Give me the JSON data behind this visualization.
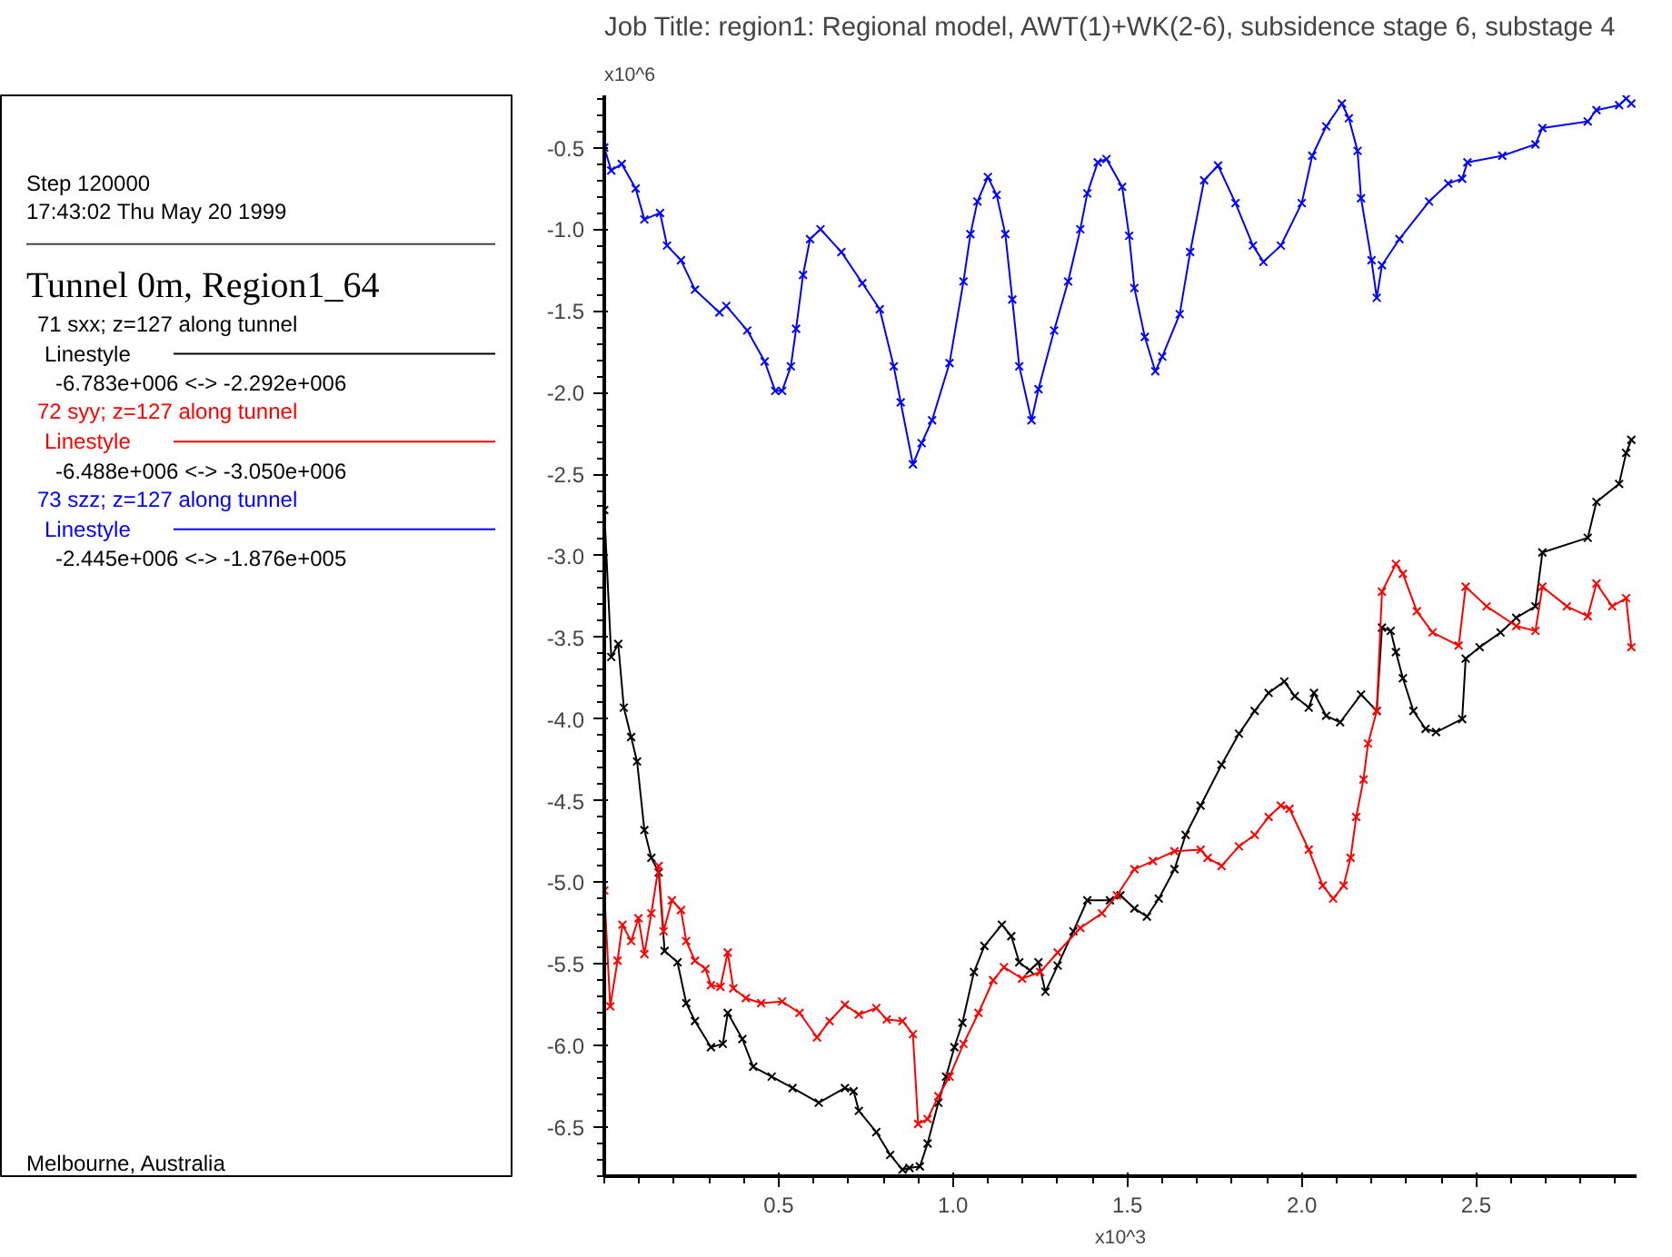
{
  "chart_data": {
    "type": "line",
    "title": "Job Title: region1: Regional model, AWT(1)+WK(2-6), subsidence stage 6, substage 4",
    "subtitle": "Tunnel 0m, Region1_64",
    "xlabel": "x10^3",
    "ylabel": "x10^6",
    "annotations": [
      "Step 120000",
      "17:43:02 Thu May 20 1999",
      "Linestyle",
      "-6.783e+006 <-> -2.292e+006",
      "Linestyle",
      "-6.488e+006 <-> -3.050e+006",
      "Linestyle",
      "-2.445e+006 <-> -1.876e+005",
      "Melbourne,  Australia"
    ],
    "xlim": [
      0,
      2.96
    ],
    "ylim": [
      -6.8,
      -0.18
    ],
    "xticks": [
      0.5,
      {
        "value": 1,
        "label": "1.0"
      },
      1.5,
      {
        "value": 2,
        "label": "2.0"
      },
      2.5
    ],
    "yticks": [
      -6.5,
      {
        "value": -6,
        "label": "-6.0"
      },
      -5.5,
      {
        "value": -5,
        "label": "-5.0"
      },
      -4.5,
      {
        "value": -4,
        "label": "-4.0"
      },
      -3.5,
      {
        "value": -3,
        "label": "-3.0"
      },
      -2.5,
      {
        "value": -2,
        "label": "-2.0"
      },
      -1.5,
      {
        "value": -1,
        "label": "-1.0"
      },
      -0.5
    ],
    "grid": false,
    "legend": "left",
    "marker": "cross",
    "line_style": "solid",
    "series": [
      {
        "name": "71 sxx; z=127 along tunnel",
        "color": "#000000",
        "x": [
          0,
          0.02,
          0.04,
          0.056,
          0.077,
          0.094,
          0.115,
          0.135,
          0.156,
          0.173,
          0.21,
          0.235,
          0.26,
          0.306,
          0.34,
          0.354,
          0.396,
          0.427,
          0.48,
          0.54,
          0.615,
          0.69,
          0.715,
          0.73,
          0.78,
          0.82,
          0.855,
          0.875,
          0.905,
          0.927,
          0.958,
          0.98,
          1.004,
          1.027,
          1.06,
          1.09,
          1.14,
          1.167,
          1.19,
          1.22,
          1.245,
          1.265,
          1.3,
          1.345,
          1.385,
          1.45,
          1.48,
          1.52,
          1.556,
          1.59,
          1.635,
          1.667,
          1.71,
          1.77,
          1.82,
          1.865,
          1.905,
          1.95,
          1.98,
          2.02,
          2.035,
          2.07,
          2.11,
          2.17,
          2.215,
          2.23,
          2.255,
          2.27,
          2.29,
          2.32,
          2.355,
          2.385,
          2.46,
          2.47,
          2.51,
          2.57,
          2.615,
          2.67,
          2.69,
          2.82,
          2.845,
          2.91,
          2.93,
          2.945
        ],
        "values": [
          -2.72,
          -3.62,
          -3.54,
          -3.93,
          -4.11,
          -4.26,
          -4.68,
          -4.85,
          -4.94,
          -5.42,
          -5.49,
          -5.74,
          -5.85,
          -6.01,
          -5.99,
          -5.8,
          -5.96,
          -6.13,
          -6.19,
          -6.26,
          -6.35,
          -6.26,
          -6.28,
          -6.4,
          -6.53,
          -6.67,
          -6.76,
          -6.75,
          -6.74,
          -6.6,
          -6.35,
          -6.19,
          -6.01,
          -5.86,
          -5.55,
          -5.39,
          -5.26,
          -5.33,
          -5.49,
          -5.54,
          -5.49,
          -5.67,
          -5.51,
          -5.3,
          -5.11,
          -5.11,
          -5.08,
          -5.16,
          -5.21,
          -5.1,
          -4.92,
          -4.71,
          -4.53,
          -4.28,
          -4.09,
          -3.95,
          -3.84,
          -3.77,
          -3.86,
          -3.93,
          -3.84,
          -3.98,
          -4.02,
          -3.85,
          -3.95,
          -3.44,
          -3.46,
          -3.59,
          -3.75,
          -3.95,
          -4.06,
          -4.08,
          -4.0,
          -3.63,
          -3.56,
          -3.47,
          -3.38,
          -3.31,
          -2.98,
          -2.89,
          -2.67,
          -2.56,
          -2.37,
          -2.29
        ]
      },
      {
        "name": "72 syy; z=127 along tunnel",
        "color": "#ff0000",
        "x": [
          0,
          0.017,
          0.038,
          0.052,
          0.077,
          0.098,
          0.115,
          0.135,
          0.156,
          0.17,
          0.194,
          0.22,
          0.235,
          0.26,
          0.29,
          0.306,
          0.333,
          0.354,
          0.37,
          0.406,
          0.45,
          0.51,
          0.56,
          0.61,
          0.646,
          0.69,
          0.73,
          0.78,
          0.81,
          0.855,
          0.885,
          0.9,
          0.927,
          0.958,
          0.99,
          1.03,
          1.073,
          1.115,
          1.146,
          1.198,
          1.25,
          1.3,
          1.365,
          1.427,
          1.47,
          1.52,
          1.573,
          1.635,
          1.71,
          1.73,
          1.77,
          1.82,
          1.865,
          1.905,
          1.94,
          1.965,
          2.02,
          2.06,
          2.09,
          2.12,
          2.14,
          2.156,
          2.177,
          2.19,
          2.215,
          2.23,
          2.27,
          2.29,
          2.33,
          2.375,
          2.45,
          2.47,
          2.53,
          2.615,
          2.67,
          2.69,
          2.76,
          2.82,
          2.845,
          2.89,
          2.93,
          2.945
        ],
        "values": [
          -5.05,
          -5.76,
          -5.48,
          -5.26,
          -5.36,
          -5.22,
          -5.44,
          -5.19,
          -4.9,
          -5.3,
          -5.11,
          -5.17,
          -5.36,
          -5.48,
          -5.53,
          -5.63,
          -5.64,
          -5.43,
          -5.65,
          -5.71,
          -5.74,
          -5.73,
          -5.8,
          -5.95,
          -5.85,
          -5.75,
          -5.81,
          -5.77,
          -5.84,
          -5.85,
          -5.93,
          -6.48,
          -6.45,
          -6.31,
          -6.19,
          -5.99,
          -5.8,
          -5.6,
          -5.52,
          -5.59,
          -5.55,
          -5.43,
          -5.28,
          -5.19,
          -5.08,
          -4.92,
          -4.87,
          -4.81,
          -4.8,
          -4.85,
          -4.9,
          -4.78,
          -4.71,
          -4.6,
          -4.53,
          -4.55,
          -4.8,
          -5.02,
          -5.1,
          -5.02,
          -4.85,
          -4.6,
          -4.37,
          -4.15,
          -3.95,
          -3.22,
          -3.05,
          -3.11,
          -3.34,
          -3.47,
          -3.55,
          -3.19,
          -3.31,
          -3.43,
          -3.46,
          -3.19,
          -3.31,
          -3.37,
          -3.17,
          -3.31,
          -3.26,
          -3.56
        ]
      },
      {
        "name": "73 szz; z=127 along tunnel",
        "color": "#0000ff",
        "x": [
          0,
          0.02,
          0.05,
          0.09,
          0.115,
          0.16,
          0.18,
          0.22,
          0.26,
          0.33,
          0.35,
          0.41,
          0.46,
          0.49,
          0.51,
          0.535,
          0.55,
          0.57,
          0.59,
          0.62,
          0.68,
          0.74,
          0.79,
          0.83,
          0.85,
          0.885,
          0.91,
          0.94,
          0.99,
          1.03,
          1.05,
          1.07,
          1.1,
          1.125,
          1.15,
          1.17,
          1.19,
          1.225,
          1.245,
          1.29,
          1.33,
          1.365,
          1.385,
          1.415,
          1.44,
          1.485,
          1.505,
          1.52,
          1.55,
          1.58,
          1.6,
          1.65,
          1.68,
          1.72,
          1.76,
          1.81,
          1.86,
          1.89,
          1.94,
          2.0,
          2.03,
          2.07,
          2.115,
          2.135,
          2.16,
          2.17,
          2.2,
          2.215,
          2.23,
          2.28,
          2.365,
          2.42,
          2.46,
          2.475,
          2.575,
          2.67,
          2.69,
          2.82,
          2.845,
          2.91,
          2.93,
          2.945
        ],
        "values": [
          -0.5,
          -0.64,
          -0.6,
          -0.75,
          -0.94,
          -0.9,
          -1.1,
          -1.19,
          -1.37,
          -1.51,
          -1.47,
          -1.62,
          -1.81,
          -1.99,
          -1.99,
          -1.84,
          -1.61,
          -1.28,
          -1.06,
          -1.0,
          -1.14,
          -1.33,
          -1.49,
          -1.84,
          -2.06,
          -2.44,
          -2.31,
          -2.17,
          -1.82,
          -1.32,
          -1.03,
          -0.83,
          -0.68,
          -0.79,
          -1.03,
          -1.43,
          -1.84,
          -2.17,
          -1.98,
          -1.62,
          -1.32,
          -1.0,
          -0.78,
          -0.59,
          -0.57,
          -0.74,
          -1.04,
          -1.36,
          -1.66,
          -1.87,
          -1.78,
          -1.52,
          -1.14,
          -0.7,
          -0.61,
          -0.84,
          -1.1,
          -1.2,
          -1.1,
          -0.84,
          -0.55,
          -0.37,
          -0.23,
          -0.32,
          -0.52,
          -0.81,
          -1.19,
          -1.42,
          -1.22,
          -1.06,
          -0.83,
          -0.72,
          -0.69,
          -0.59,
          -0.55,
          -0.48,
          -0.38,
          -0.34,
          -0.27,
          -0.24,
          -0.2,
          -0.23
        ]
      }
    ]
  }
}
